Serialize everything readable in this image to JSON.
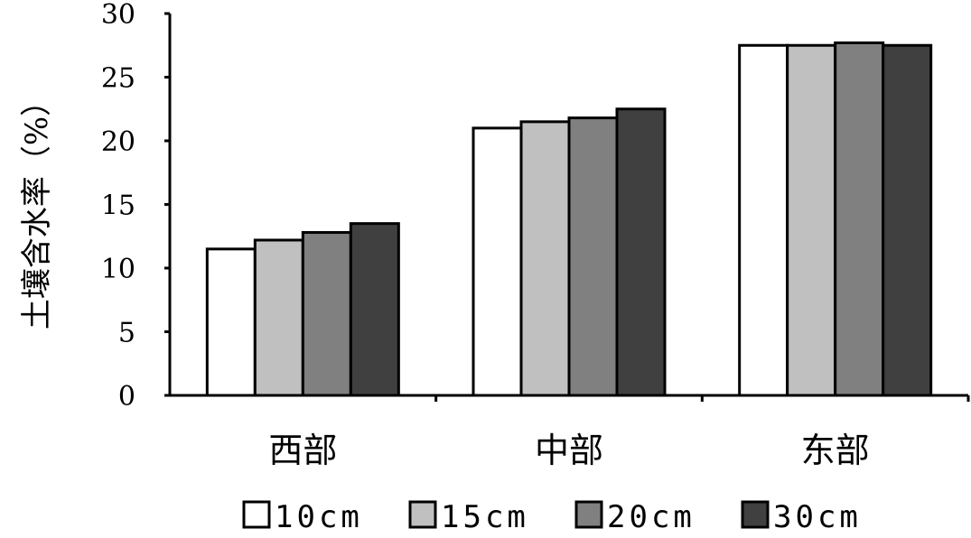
{
  "chart_data": {
    "type": "bar",
    "categories": [
      "西部",
      "中部",
      "东部"
    ],
    "series": [
      {
        "name": "10cm",
        "values": [
          11.5,
          21.0,
          27.5
        ],
        "color": "#ffffff"
      },
      {
        "name": "15cm",
        "values": [
          12.2,
          21.5,
          27.5
        ],
        "color": "#c0c0c0"
      },
      {
        "name": "20cm",
        "values": [
          12.8,
          21.8,
          27.7
        ],
        "color": "#808080"
      },
      {
        "name": "30cm",
        "values": [
          13.5,
          22.5,
          27.5
        ],
        "color": "#404040"
      }
    ],
    "title": "",
    "xlabel": "",
    "ylabel": "土壤含水率（%）",
    "ylim": [
      0,
      30
    ],
    "yticks": [
      0,
      5,
      10,
      15,
      20,
      25,
      30
    ],
    "grid": false,
    "legend": "bottom"
  }
}
